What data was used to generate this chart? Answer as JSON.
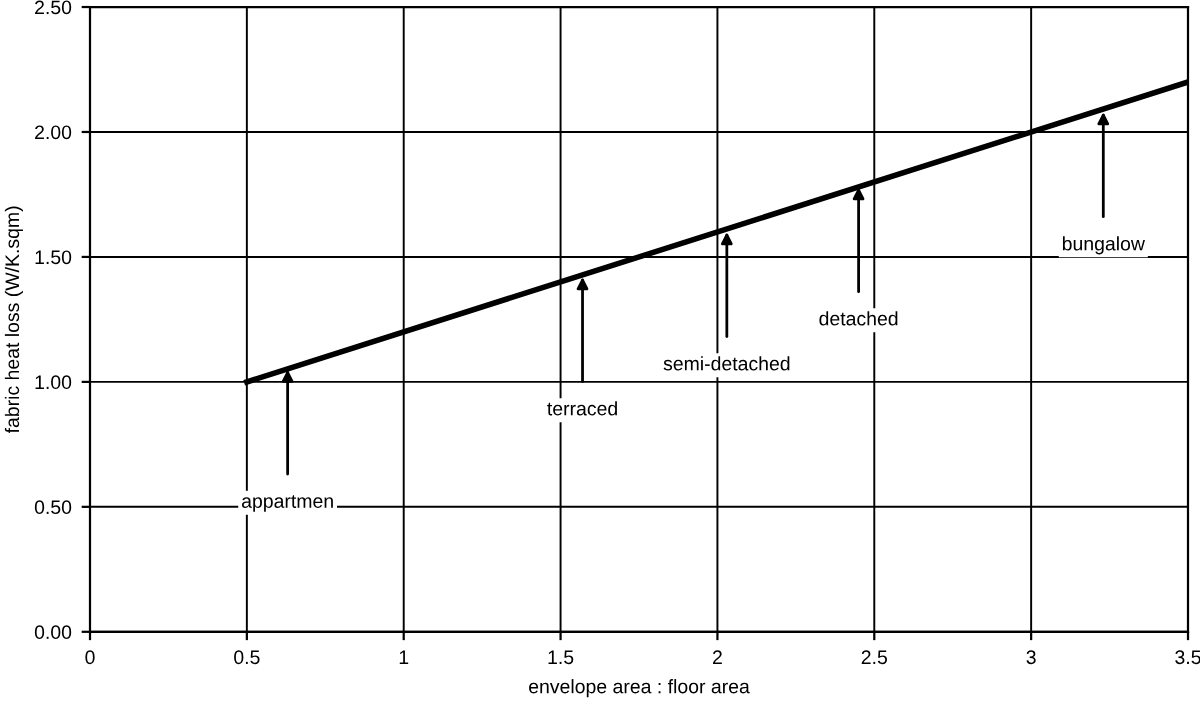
{
  "chart_data": {
    "type": "line",
    "xlabel": "envelope area : floor area",
    "ylabel": "fabric heat loss (W/K.sqm)",
    "x": [
      0.5,
      3.5
    ],
    "series": [
      {
        "color": "#000000",
        "values": [
          1.0,
          2.2
        ]
      }
    ],
    "xlim": [
      0,
      3.5
    ],
    "xticks": [
      0,
      0.5,
      1,
      1.5,
      2,
      2.5,
      3,
      3.5
    ],
    "ylim": [
      0,
      2.5
    ],
    "yticks": [
      {
        "value": 0,
        "label": "0.00"
      },
      {
        "value": 0.5,
        "label": "0.50"
      },
      {
        "value": 1,
        "label": "1.00"
      },
      {
        "value": 1.5,
        "label": "1.50"
      },
      {
        "value": 2,
        "label": "2.00"
      },
      {
        "value": 2.5,
        "label": "2.50"
      }
    ],
    "grid": true,
    "legend": false,
    "marker": "none",
    "line_style": "solid",
    "annotations": [
      {
        "text": "appartmen",
        "x": 0.63,
        "y": 1.05
      },
      {
        "text": "terraced",
        "x": 1.57,
        "y": 1.42
      },
      {
        "text": "semi-detached",
        "x": 2.03,
        "y": 1.6
      },
      {
        "text": "detached",
        "x": 2.45,
        "y": 1.78
      },
      {
        "text": "bungalow",
        "x": 3.23,
        "y": 2.08
      }
    ]
  }
}
